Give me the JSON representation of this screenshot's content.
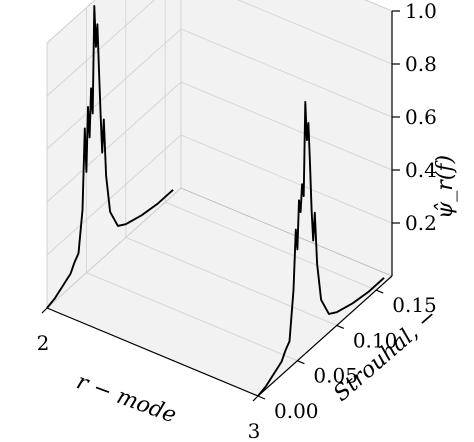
{
  "chart_data": {
    "type": "line3d",
    "xlabel": "r − mode",
    "ylabel": "Strouhal, −",
    "zlabel": "ψ̂_r(f)",
    "x_ticks": [
      {
        "value": 2,
        "label": "2"
      },
      {
        "value": 3,
        "label": "3"
      }
    ],
    "y_ticks": [
      {
        "value": 0.0,
        "label": "0.00"
      },
      {
        "value": 0.05,
        "label": "0.05"
      },
      {
        "value": 0.1,
        "label": "0.10"
      },
      {
        "value": 0.15,
        "label": "0.15"
      }
    ],
    "z_ticks": [
      {
        "value": 0.2,
        "label": "0.2"
      },
      {
        "value": 0.4,
        "label": "0.4"
      },
      {
        "value": 0.6,
        "label": "0.6"
      },
      {
        "value": 0.8,
        "label": "0.8"
      },
      {
        "value": 1.0,
        "label": "1.0"
      }
    ],
    "xlim": [
      2,
      3
    ],
    "ylim": [
      0,
      0.17
    ],
    "zlim": [
      0,
      1.0
    ],
    "grid": true,
    "series": [
      {
        "x": 2,
        "color": "#000000",
        "points": [
          [
            0.0,
            0.0
          ],
          [
            0.01,
            0.01
          ],
          [
            0.02,
            0.03
          ],
          [
            0.03,
            0.05
          ],
          [
            0.035,
            0.08
          ],
          [
            0.04,
            0.1
          ],
          [
            0.045,
            0.25
          ],
          [
            0.048,
            0.55
          ],
          [
            0.05,
            0.38
          ],
          [
            0.052,
            0.62
          ],
          [
            0.054,
            0.5
          ],
          [
            0.056,
            0.68
          ],
          [
            0.058,
            0.58
          ],
          [
            0.06,
            0.98
          ],
          [
            0.062,
            0.82
          ],
          [
            0.064,
            0.9
          ],
          [
            0.066,
            0.72
          ],
          [
            0.068,
            0.55
          ],
          [
            0.07,
            0.4
          ],
          [
            0.072,
            0.52
          ],
          [
            0.075,
            0.3
          ],
          [
            0.08,
            0.15
          ],
          [
            0.09,
            0.07
          ],
          [
            0.1,
            0.05
          ],
          [
            0.12,
            0.03
          ],
          [
            0.14,
            0.02
          ],
          [
            0.16,
            0.02
          ]
        ]
      },
      {
        "x": 3,
        "color": "#000000",
        "points": [
          [
            0.0,
            0.0
          ],
          [
            0.01,
            0.01
          ],
          [
            0.02,
            0.03
          ],
          [
            0.03,
            0.05
          ],
          [
            0.035,
            0.08
          ],
          [
            0.04,
            0.1
          ],
          [
            0.045,
            0.28
          ],
          [
            0.048,
            0.5
          ],
          [
            0.05,
            0.42
          ],
          [
            0.052,
            0.6
          ],
          [
            0.054,
            0.55
          ],
          [
            0.056,
            0.65
          ],
          [
            0.058,
            0.6
          ],
          [
            0.06,
            0.95
          ],
          [
            0.062,
            0.8
          ],
          [
            0.064,
            0.86
          ],
          [
            0.066,
            0.7
          ],
          [
            0.068,
            0.52
          ],
          [
            0.07,
            0.4
          ],
          [
            0.072,
            0.5
          ],
          [
            0.075,
            0.3
          ],
          [
            0.08,
            0.15
          ],
          [
            0.09,
            0.07
          ],
          [
            0.1,
            0.05
          ],
          [
            0.12,
            0.03
          ],
          [
            0.14,
            0.02
          ],
          [
            0.16,
            0.02
          ]
        ]
      }
    ]
  }
}
